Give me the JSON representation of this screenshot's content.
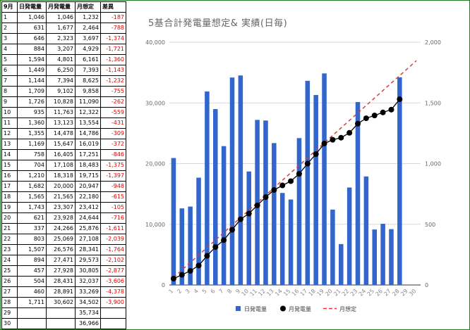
{
  "table": {
    "headers": [
      "9月",
      "日発電量",
      "月発電量",
      "月想定",
      "差異"
    ],
    "rows": [
      [
        "1",
        "1,046",
        "1,046",
        "1,232",
        "-187"
      ],
      [
        "2",
        "631",
        "1,677",
        "2,464",
        "-788"
      ],
      [
        "3",
        "646",
        "2,323",
        "3,697",
        "-1,374"
      ],
      [
        "4",
        "884",
        "3,207",
        "4,929",
        "-1,721"
      ],
      [
        "5",
        "1,594",
        "4,801",
        "6,161",
        "-1,360"
      ],
      [
        "6",
        "1,449",
        "6,250",
        "7,393",
        "-1,143"
      ],
      [
        "7",
        "1,144",
        "7,394",
        "8,625",
        "-1,232"
      ],
      [
        "8",
        "1,709",
        "9,102",
        "9,858",
        "-755"
      ],
      [
        "9",
        "1,726",
        "10,828",
        "11,090",
        "-262"
      ],
      [
        "10",
        "935",
        "11,763",
        "12,322",
        "-559"
      ],
      [
        "11",
        "1,360",
        "13,123",
        "13,554",
        "-431"
      ],
      [
        "12",
        "1,355",
        "14,478",
        "14,786",
        "-309"
      ],
      [
        "13",
        "1,169",
        "15,647",
        "16,019",
        "-372"
      ],
      [
        "14",
        "758",
        "16,405",
        "17,251",
        "-846"
      ],
      [
        "15",
        "704",
        "17,108",
        "18,483",
        "-1,375"
      ],
      [
        "16",
        "1,210",
        "18,318",
        "19,715",
        "-1,397"
      ],
      [
        "17",
        "1,682",
        "20,000",
        "20,947",
        "-948"
      ],
      [
        "18",
        "1,565",
        "21,565",
        "22,180",
        "-615"
      ],
      [
        "19",
        "1,743",
        "23,307",
        "23,412",
        "-105"
      ],
      [
        "20",
        "621",
        "23,928",
        "24,644",
        "-716"
      ],
      [
        "21",
        "337",
        "24,266",
        "25,876",
        "-1,611"
      ],
      [
        "22",
        "803",
        "25,069",
        "27,108",
        "-2,039"
      ],
      [
        "23",
        "1,507",
        "26,576",
        "28,341",
        "-1,764"
      ],
      [
        "24",
        "894",
        "27,471",
        "29,573",
        "-2,102"
      ],
      [
        "25",
        "457",
        "27,928",
        "30,805",
        "-2,877"
      ],
      [
        "26",
        "504",
        "28,431",
        "32,037",
        "-3,606"
      ],
      [
        "27",
        "460",
        "28,891",
        "33,269",
        "-4,378"
      ],
      [
        "28",
        "1,711",
        "30,602",
        "34,502",
        "-3,900"
      ],
      [
        "29",
        "",
        "",
        "35,734",
        ""
      ],
      [
        "30",
        "",
        "",
        "36,966",
        ""
      ]
    ]
  },
  "chart_data": {
    "type": "bar",
    "title": "5基合計発電量想定& 実績(日毎)",
    "categories": [
      "1",
      "2",
      "3",
      "4",
      "5",
      "6",
      "7",
      "8",
      "9",
      "10",
      "11",
      "12",
      "13",
      "14",
      "15",
      "16",
      "17",
      "18",
      "19",
      "20",
      "21",
      "22",
      "23",
      "24",
      "25",
      "26",
      "27",
      "28",
      "29",
      "30"
    ],
    "series": [
      {
        "name": "日発電量",
        "type": "bar",
        "axis": "right",
        "color": "#3366cc",
        "values": [
          1046,
          631,
          646,
          884,
          1594,
          1449,
          1144,
          1709,
          1726,
          935,
          1360,
          1355,
          1169,
          758,
          704,
          1210,
          1682,
          1565,
          1743,
          621,
          337,
          803,
          1507,
          894,
          457,
          504,
          460,
          1711,
          null,
          null
        ]
      },
      {
        "name": "月発電量",
        "type": "line",
        "axis": "left",
        "color": "#000000",
        "values": [
          1046,
          1677,
          2323,
          3207,
          4801,
          6250,
          7394,
          9102,
          10828,
          11763,
          13123,
          14478,
          15647,
          16405,
          17108,
          18318,
          20000,
          21565,
          23307,
          23928,
          24266,
          25069,
          26576,
          27471,
          27928,
          28431,
          28891,
          30602,
          null,
          null
        ]
      },
      {
        "name": "月想定",
        "type": "line",
        "axis": "left",
        "dashed": true,
        "color": "#e53935",
        "values": [
          1232,
          2464,
          3697,
          4929,
          6161,
          7393,
          8625,
          9858,
          11090,
          12322,
          13554,
          14786,
          16019,
          17251,
          18483,
          19715,
          20947,
          22180,
          23412,
          24644,
          25876,
          27108,
          28341,
          29573,
          30805,
          32037,
          33269,
          34502,
          35734,
          36966
        ]
      }
    ],
    "left_axis": {
      "min": 0,
      "max": 40000,
      "ticks": [
        "0",
        "10,000",
        "20,000",
        "30,000",
        "40,000"
      ],
      "tick_values": [
        0,
        10000,
        20000,
        30000,
        40000
      ]
    },
    "right_axis": {
      "min": 0,
      "max": 2000,
      "ticks": [
        "0",
        "500",
        "1,000",
        "1,500",
        "2,000"
      ],
      "tick_values": [
        0,
        500,
        1000,
        1500,
        2000
      ]
    },
    "grid": true,
    "legend_position": "bottom"
  }
}
